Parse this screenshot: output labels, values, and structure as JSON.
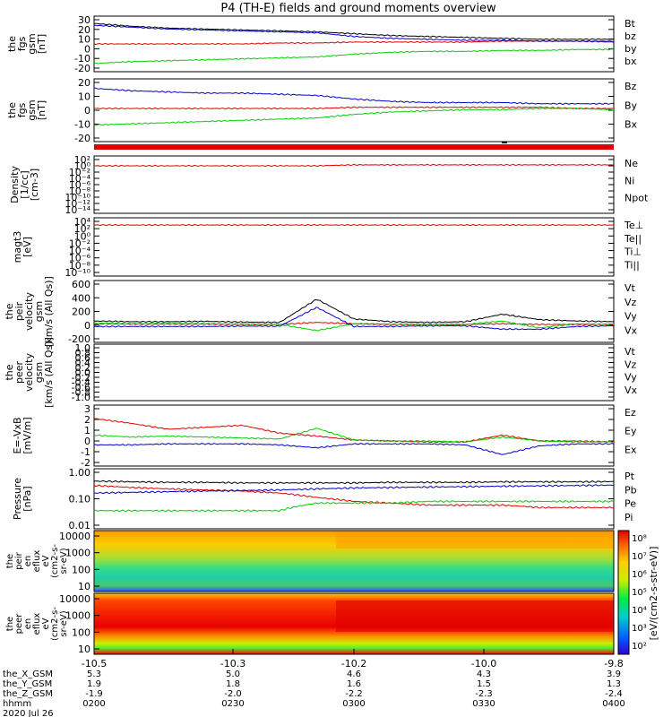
{
  "title": "P4 (TH-E) fields and ground moments overview",
  "colors": {
    "black": "#000000",
    "red": "#e00000",
    "green": "#00d000",
    "blue": "#0000cc"
  },
  "colorbar_label": "[eV/(cm2-s-str-eV)]",
  "colorbar_ticks": [
    "10⁸",
    "10⁷",
    "10⁶",
    "10⁵",
    "10⁴",
    "10³",
    "10²"
  ],
  "spectrograms": [
    {
      "ylabel": [
        "the",
        "peir",
        "en",
        "eflux",
        "eV",
        "(cm2-s-",
        "sr-eV)"
      ],
      "yticks": [
        "10000",
        "1000",
        "100",
        "10"
      ]
    },
    {
      "ylabel": [
        "the",
        "peer",
        "en",
        "eflux",
        "eV",
        "(cm2-s-",
        "sr-eV)"
      ],
      "yticks": [
        "10000",
        "1000",
        "100",
        "10"
      ]
    }
  ],
  "xaxis": {
    "ticks": [
      "-10.5",
      "-10.3",
      "-10.2",
      "-10.0",
      "-9.8"
    ],
    "rows": [
      {
        "label": "the_X_GSM",
        "values": [
          "5.3",
          "5.0",
          "4.6",
          "4.3",
          "3.9"
        ]
      },
      {
        "label": "the_Y_GSM",
        "values": [
          "1.9",
          "1.8",
          "1.6",
          "1.5",
          "1.3"
        ]
      },
      {
        "label": "the_Z_GSM",
        "values": [
          "-1.9",
          "-2.0",
          "-2.2",
          "-2.3",
          "-2.4"
        ]
      },
      {
        "label": "hhmm",
        "values": [
          "0200",
          "0230",
          "0300",
          "0330",
          "0400"
        ]
      }
    ],
    "date": "2020 Jul 26"
  },
  "chart_data": [
    {
      "type": "line",
      "panel": "fgs_gsm",
      "ylabel": [
        "the",
        "fgs",
        "gsm",
        "[nT]"
      ],
      "yticks": [
        "30",
        "20",
        "10",
        "0",
        "-10",
        "-20"
      ],
      "ylim": [
        -20,
        32
      ],
      "series": [
        {
          "name": "Bt",
          "color": "black",
          "values": [
            28,
            25,
            23,
            22,
            21,
            20,
            19,
            17,
            15,
            14,
            13,
            12,
            11,
            11,
            11
          ]
        },
        {
          "name": "bz",
          "color": "red",
          "values": [
            6,
            6,
            6,
            6,
            6,
            7,
            7,
            8,
            8,
            8,
            8,
            9,
            9,
            9,
            9
          ]
        },
        {
          "name": "by",
          "color": "green",
          "values": [
            -15,
            -13,
            -12,
            -11,
            -10,
            -9,
            -8,
            -5,
            -3,
            -2,
            -2,
            -1,
            -1,
            0,
            0
          ]
        },
        {
          "name": "bx",
          "color": "blue",
          "values": [
            26,
            24,
            22,
            21,
            20,
            19,
            18,
            14,
            12,
            11,
            10,
            10,
            9,
            9,
            8
          ]
        }
      ]
    },
    {
      "type": "line",
      "panel": "fgs_gsm2",
      "ylabel": [
        "the",
        "fgs",
        "gsm",
        "[nT]"
      ],
      "yticks": [
        "20",
        "10",
        "0",
        "-10",
        "-20"
      ],
      "ylim": [
        -25,
        22
      ],
      "series": [
        {
          "name": "Bz",
          "color": "red",
          "values": [
            0,
            0,
            0,
            0,
            0,
            0,
            0,
            1,
            1,
            1,
            1,
            1,
            1,
            0,
            0
          ]
        },
        {
          "name": "By",
          "color": "green",
          "values": [
            -14,
            -13,
            -12,
            -11,
            -10,
            -9,
            -8,
            -5,
            -3,
            -2,
            -1,
            -1,
            0,
            0,
            -1
          ]
        },
        {
          "name": "Bx",
          "color": "blue",
          "values": [
            17,
            15,
            14,
            13,
            13,
            12,
            11,
            8,
            6,
            5,
            5,
            5,
            4,
            4,
            4
          ]
        }
      ]
    },
    {
      "type": "line",
      "panel": "density",
      "ylabel": [
        "Density",
        "[1/cc]",
        "[cm-3]"
      ],
      "yticks": [
        "10²",
        "10⁰",
        "10⁻²",
        "10⁻⁴",
        "10⁻⁶",
        "10⁻⁸",
        "10⁻¹⁰",
        "10⁻¹²",
        "10⁻¹⁴"
      ],
      "ylim": [
        -14,
        2
      ],
      "legend": [
        "Ne",
        "Ni",
        "Npot"
      ],
      "series": [
        {
          "name": "Ne",
          "color": "red",
          "values": [
            0,
            0,
            0,
            0,
            0,
            0,
            0,
            0.3,
            0.3,
            0.3,
            0.3,
            0.3,
            0.3,
            0.3,
            0.3
          ]
        }
      ]
    },
    {
      "type": "line",
      "panel": "temperature",
      "ylabel": [
        "magt3",
        "[eV]"
      ],
      "yticks": [
        "10⁴",
        "10²",
        "10⁰",
        "10⁻²",
        "10⁻⁴",
        "10⁻⁶",
        "10⁻⁸",
        "10⁻¹⁰"
      ],
      "ylim": [
        -10,
        4
      ],
      "legend": [
        "Te⊥",
        "Te||",
        "Ti⊥",
        "Ti||"
      ],
      "series": [
        {
          "name": "Te",
          "color": "red",
          "values": [
            3,
            3,
            3,
            3,
            3,
            3,
            3,
            3,
            3,
            3,
            3,
            3,
            3,
            3,
            3
          ]
        }
      ]
    },
    {
      "type": "line",
      "panel": "peir_velocity",
      "ylabel": [
        "the",
        "peir",
        "velocity",
        "gsm",
        "[km/s (All Qs)]"
      ],
      "yticks": [
        "600",
        "400",
        "200",
        "0",
        "-200"
      ],
      "ylim": [
        -200,
        600
      ],
      "series": [
        {
          "name": "Vt",
          "color": "black",
          "values": [
            60,
            50,
            50,
            55,
            45,
            40,
            380,
            90,
            50,
            40,
            50,
            160,
            80,
            60,
            50
          ]
        },
        {
          "name": "Vz",
          "color": "red",
          "values": [
            20,
            15,
            15,
            15,
            10,
            10,
            40,
            20,
            10,
            10,
            10,
            20,
            10,
            10,
            10
          ]
        },
        {
          "name": "Vy",
          "color": "green",
          "values": [
            30,
            20,
            25,
            20,
            15,
            10,
            -80,
            20,
            15,
            10,
            10,
            60,
            -40,
            20,
            10
          ]
        },
        {
          "name": "Vx",
          "color": "blue",
          "values": [
            -20,
            -20,
            -20,
            -20,
            -15,
            -15,
            260,
            -20,
            -20,
            -10,
            -10,
            -60,
            -60,
            -20,
            -10
          ]
        }
      ]
    },
    {
      "type": "line",
      "panel": "peer_velocity",
      "ylabel": [
        "the",
        "peer",
        "velocity",
        "gsm",
        "[km/s (All Qs)]"
      ],
      "yticks": [
        "1.0",
        "0.8",
        "0.6",
        "0.4",
        "0.2",
        "0.0",
        "-0.2",
        "-0.4",
        "-0.6",
        "-0.8",
        "-1.0"
      ],
      "ylim": [
        -1,
        1
      ],
      "legend": [
        "Vt",
        "Vz",
        "Vy",
        "Vx"
      ],
      "series": []
    },
    {
      "type": "line",
      "panel": "efield",
      "ylabel": [
        "E=-VxB",
        "[mV/m]"
      ],
      "yticks": [
        "3",
        "2",
        "1",
        "0",
        "-1",
        "-2"
      ],
      "ylim": [
        -2,
        3.5
      ],
      "series": [
        {
          "name": "Ez",
          "color": "red",
          "values": [
            2.5,
            2.0,
            1.4,
            1.6,
            1.8,
            1.0,
            0.7,
            0.3,
            0.2,
            0.1,
            0.1,
            0.8,
            0.2,
            0.2,
            0.1
          ]
        },
        {
          "name": "Ey",
          "color": "green",
          "values": [
            0.8,
            0.6,
            0.7,
            0.6,
            0.5,
            0.4,
            1.5,
            0.3,
            0.2,
            0.2,
            0.1,
            0.6,
            0.2,
            0.1,
            0.1
          ]
        },
        {
          "name": "Ex",
          "color": "blue",
          "values": [
            -0.2,
            -0.2,
            -0.1,
            -0.1,
            -0.1,
            -0.2,
            -0.5,
            -0.1,
            -0.1,
            -0.1,
            -0.2,
            -1.2,
            -0.3,
            -0.1,
            -0.1
          ]
        }
      ]
    },
    {
      "type": "line",
      "panel": "pressure",
      "ylabel": [
        "Pressure",
        "[nPa]"
      ],
      "yticks": [
        "1.00",
        "0.10",
        "0.01"
      ],
      "ylim": [
        -2.1,
        0
      ],
      "log": true,
      "series": [
        {
          "name": "Pt",
          "color": "black",
          "values": [
            0.45,
            0.42,
            0.4,
            0.4,
            0.38,
            0.38,
            0.38,
            0.38,
            0.4,
            0.4,
            0.4,
            0.42,
            0.42,
            0.42,
            0.43
          ]
        },
        {
          "name": "Pb",
          "color": "red",
          "values": [
            0.3,
            0.25,
            0.22,
            0.2,
            0.18,
            0.15,
            0.1,
            0.07,
            0.06,
            0.05,
            0.05,
            0.05,
            0.04,
            0.04,
            0.04
          ]
        },
        {
          "name": "Pe",
          "color": "green",
          "values": [
            0.03,
            0.03,
            0.03,
            0.03,
            0.03,
            0.03,
            0.06,
            0.06,
            0.06,
            0.07,
            0.07,
            0.07,
            0.07,
            0.07,
            0.07
          ]
        },
        {
          "name": "Pi",
          "color": "blue",
          "values": [
            0.15,
            0.16,
            0.17,
            0.18,
            0.19,
            0.2,
            0.22,
            0.24,
            0.25,
            0.26,
            0.27,
            0.28,
            0.29,
            0.3,
            0.31
          ]
        }
      ]
    }
  ]
}
